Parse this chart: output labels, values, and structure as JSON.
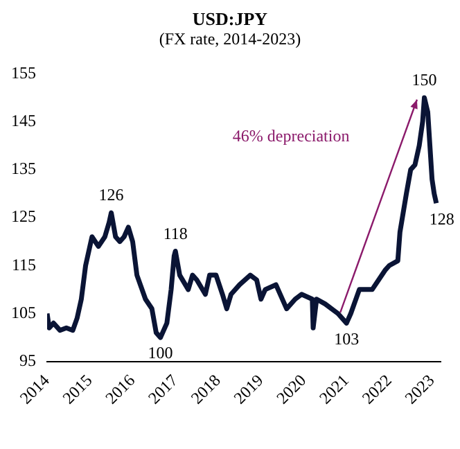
{
  "chart_data": {
    "type": "line",
    "title": "USD:JPY",
    "subtitle": "(FX rate, 2014-2023)",
    "x": [
      2014.0,
      2014.05,
      2014.15,
      2014.3,
      2014.45,
      2014.6,
      2014.7,
      2014.8,
      2014.9,
      2015.0,
      2015.05,
      2015.2,
      2015.35,
      2015.45,
      2015.5,
      2015.6,
      2015.7,
      2015.8,
      2015.9,
      2016.0,
      2016.1,
      2016.3,
      2016.45,
      2016.55,
      2016.65,
      2016.8,
      2016.9,
      2016.97,
      2017.0,
      2017.1,
      2017.3,
      2017.4,
      2017.5,
      2017.7,
      2017.8,
      2017.95,
      2018.1,
      2018.2,
      2018.3,
      2018.5,
      2018.75,
      2018.9,
      2019.0,
      2019.1,
      2019.35,
      2019.6,
      2019.8,
      2019.95,
      2020.2,
      2020.22,
      2020.3,
      2020.5,
      2020.8,
      2021.0,
      2021.1,
      2021.3,
      2021.6,
      2021.9,
      2022.0,
      2022.2,
      2022.25,
      2022.4,
      2022.5,
      2022.6,
      2022.7,
      2022.78,
      2022.82,
      2022.9,
      2022.95,
      2023.0,
      2023.05,
      2023.1
    ],
    "series": [
      {
        "color": "#0a1435",
        "values": [
          105,
          102,
          103,
          101.5,
          102,
          101.5,
          104,
          108,
          115,
          119,
          121,
          119,
          121,
          124,
          126,
          121,
          120,
          121,
          123,
          120,
          113,
          108,
          106,
          101,
          100,
          103,
          110,
          117,
          118,
          113,
          110,
          113,
          112,
          109,
          113,
          113,
          109,
          106,
          109,
          111,
          113,
          112,
          108,
          110,
          111,
          106,
          108,
          109,
          108,
          102,
          108,
          107,
          105,
          103,
          105,
          110,
          110,
          114,
          115,
          116,
          122,
          130,
          135,
          136,
          140,
          145,
          150,
          147,
          140,
          133,
          130,
          128
        ]
      }
    ],
    "xlim": [
      2014,
      2023.2
    ],
    "xticks": [
      2014,
      2015,
      2016,
      2017,
      2018,
      2019,
      2020,
      2021,
      2022,
      2023
    ],
    "ylim": [
      95,
      155
    ],
    "yticks": [
      95,
      105,
      115,
      125,
      135,
      145,
      155
    ],
    "annotations": [
      {
        "text": "126",
        "x": 2015.5,
        "y": 126
      },
      {
        "text": "100",
        "x": 2016.65,
        "y": 100
      },
      {
        "text": "118",
        "x": 2017.0,
        "y": 118
      },
      {
        "text": "103",
        "x": 2021.0,
        "y": 103
      },
      {
        "text": "150",
        "x": 2022.82,
        "y": 150
      },
      {
        "text": "128",
        "x": 2023.1,
        "y": 128
      },
      "46% depreciation"
    ],
    "grid": false,
    "legend": false,
    "marker": "none",
    "line_style": "solid"
  }
}
